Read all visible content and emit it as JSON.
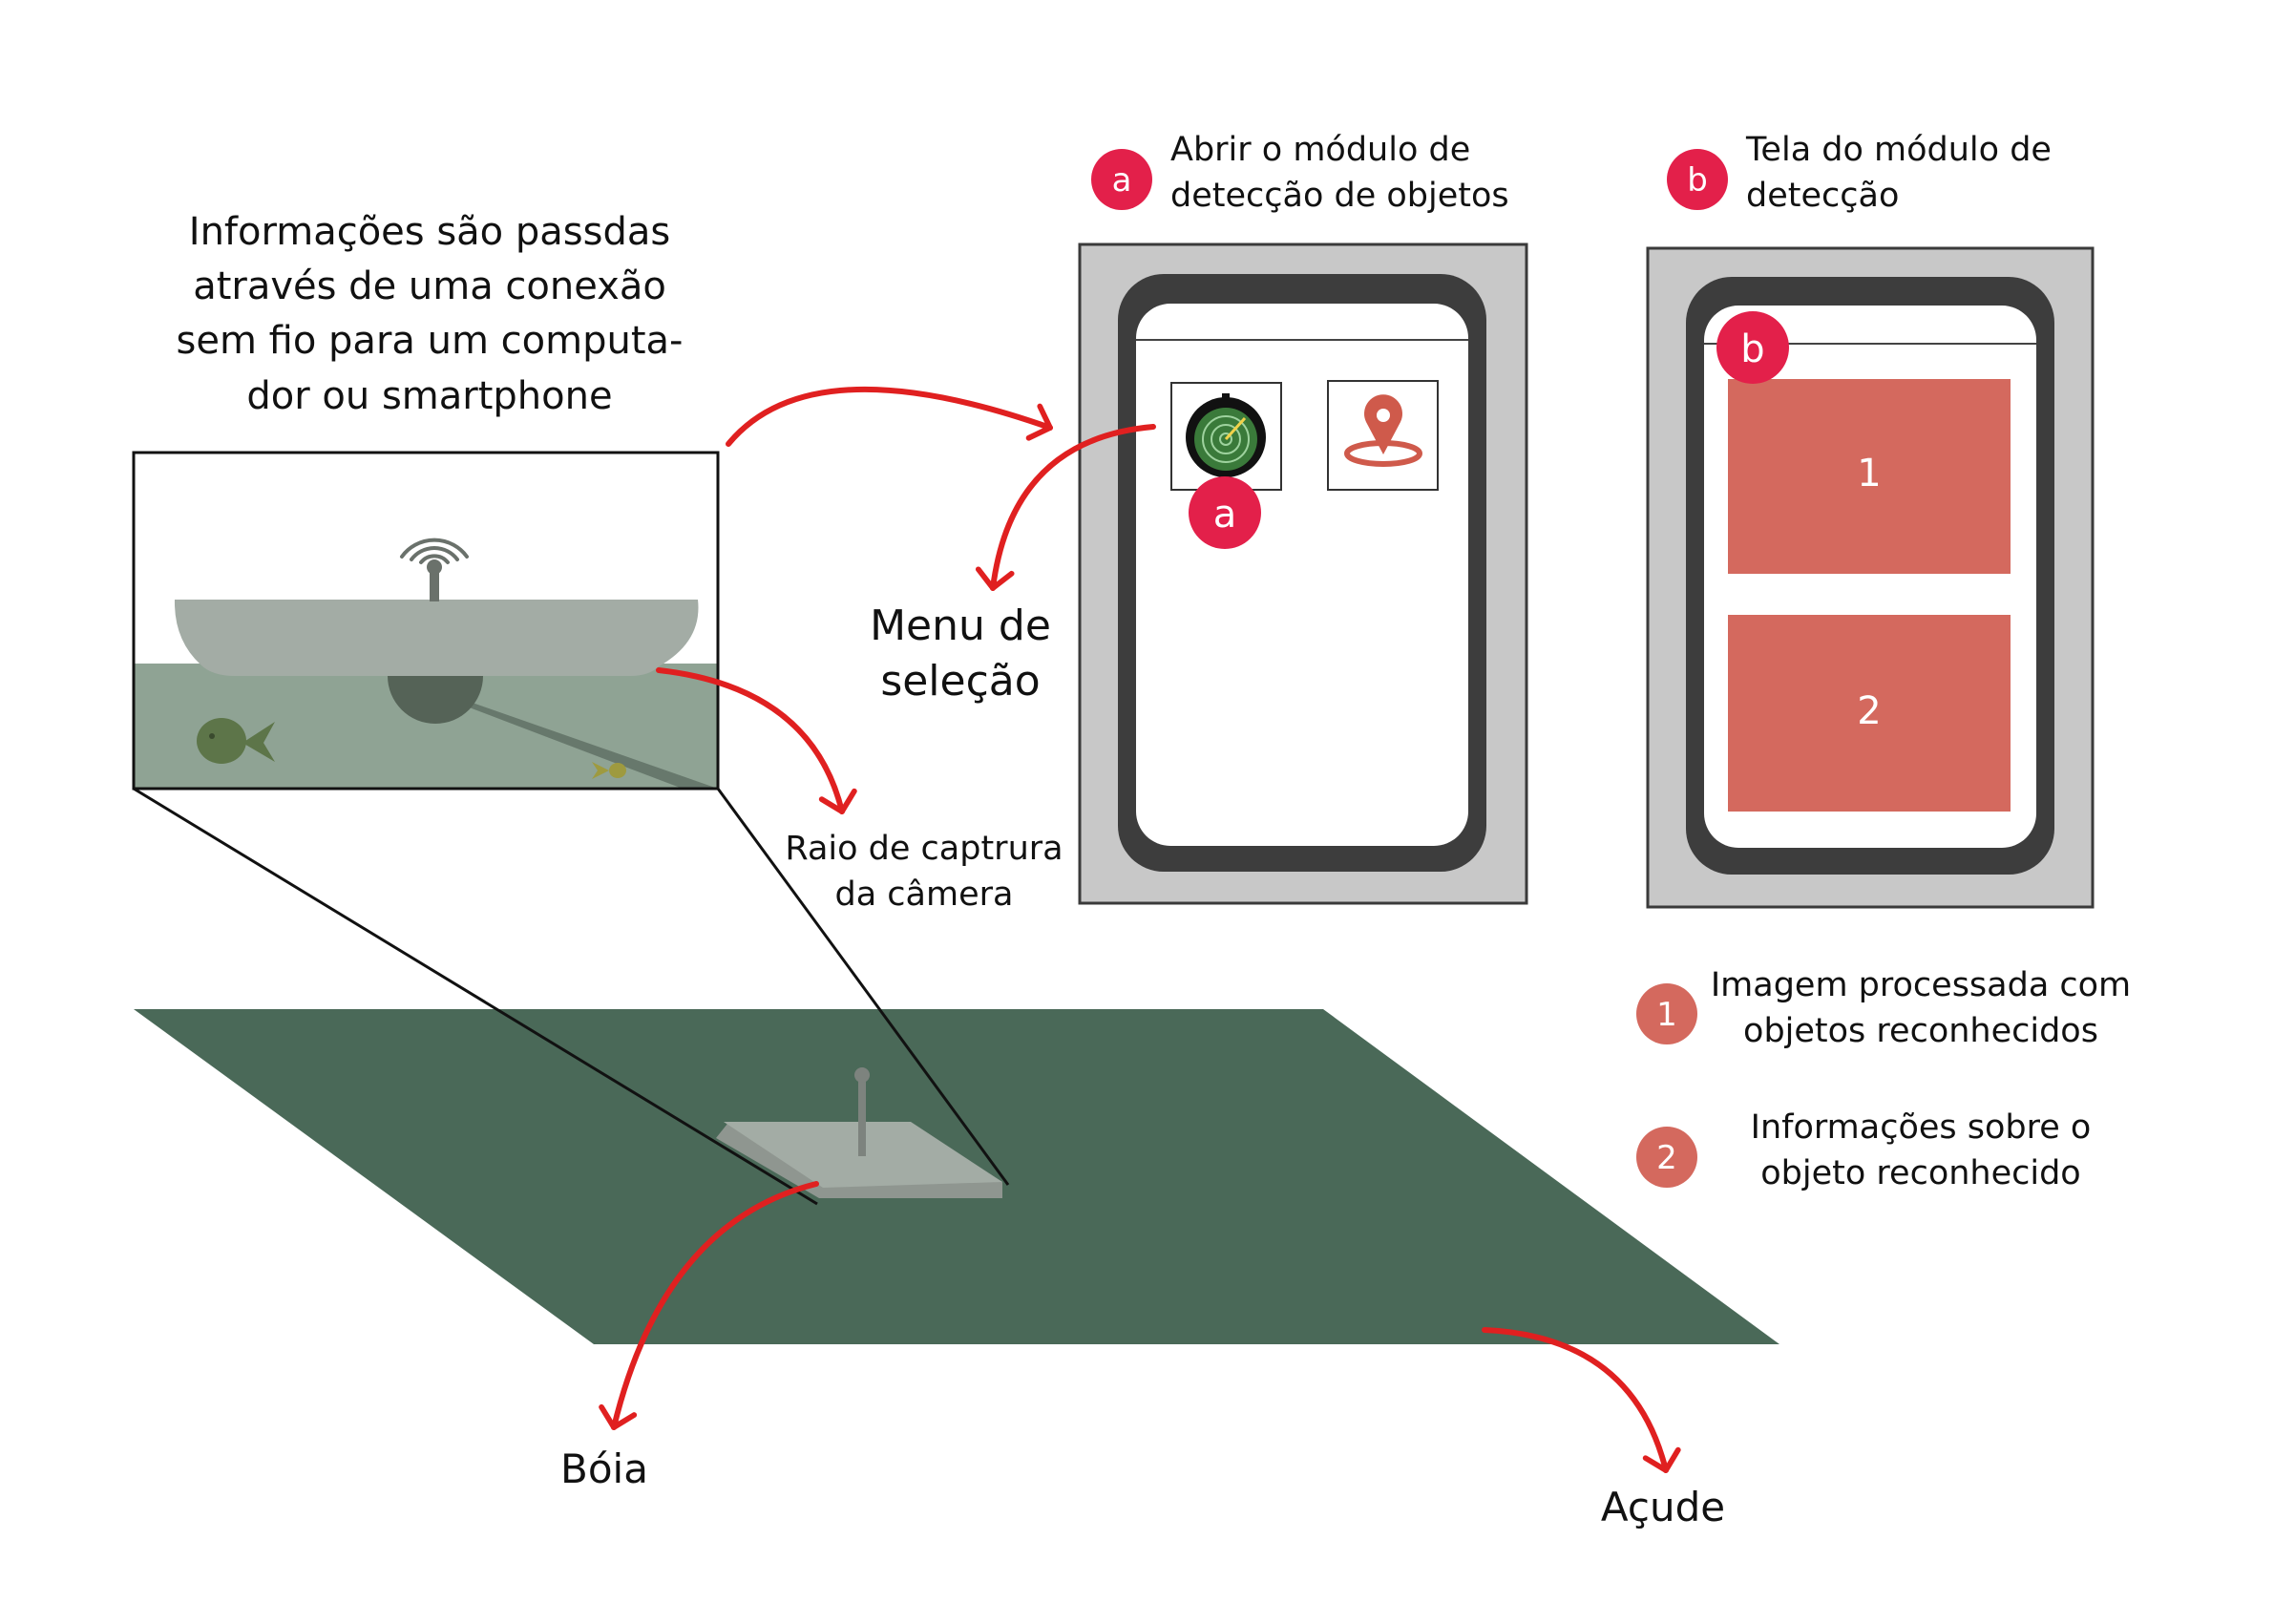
{
  "info_text": {
    "line1": "Informações são passdas",
    "line2": "através de uma conexão",
    "line3": "sem fio para um computa-",
    "line4": "dor ou smartphone"
  },
  "step_a": {
    "badge": "a",
    "line1": "Abrir o módulo de",
    "line2": "detecção de objetos"
  },
  "step_b": {
    "badge": "b",
    "line1": "Tela do módulo de",
    "line2": "detecção"
  },
  "phone_a": {
    "badge": "a"
  },
  "phone_b": {
    "badge": "b",
    "panel1": "1",
    "panel2": "2"
  },
  "labels": {
    "menu_line1": "Menu de",
    "menu_line2": "seleção",
    "raio_line1": "Raio de captrura",
    "raio_line2": "da câmera",
    "boia": "Bóia",
    "acude": "Açude"
  },
  "legend": [
    {
      "num": "1",
      "line1": "Imagem processada com",
      "line2": "objetos reconhecidos"
    },
    {
      "num": "2",
      "line1": "Informações sobre o",
      "line2": "objeto reconhecido"
    }
  ],
  "colors": {
    "accent_red": "#e3204a",
    "arrow_red": "#e02020",
    "panel_salmon": "#d4695e",
    "pond_green": "#4a6958",
    "water": "#8fa394",
    "boat": "#a3aca5",
    "phone_frame": "#c8c8c8",
    "phone_border": "#3d3d3d"
  },
  "icons": [
    "radar-icon",
    "map-pin-icon",
    "wifi-signal-icon",
    "fish-icon",
    "camera-icon"
  ]
}
